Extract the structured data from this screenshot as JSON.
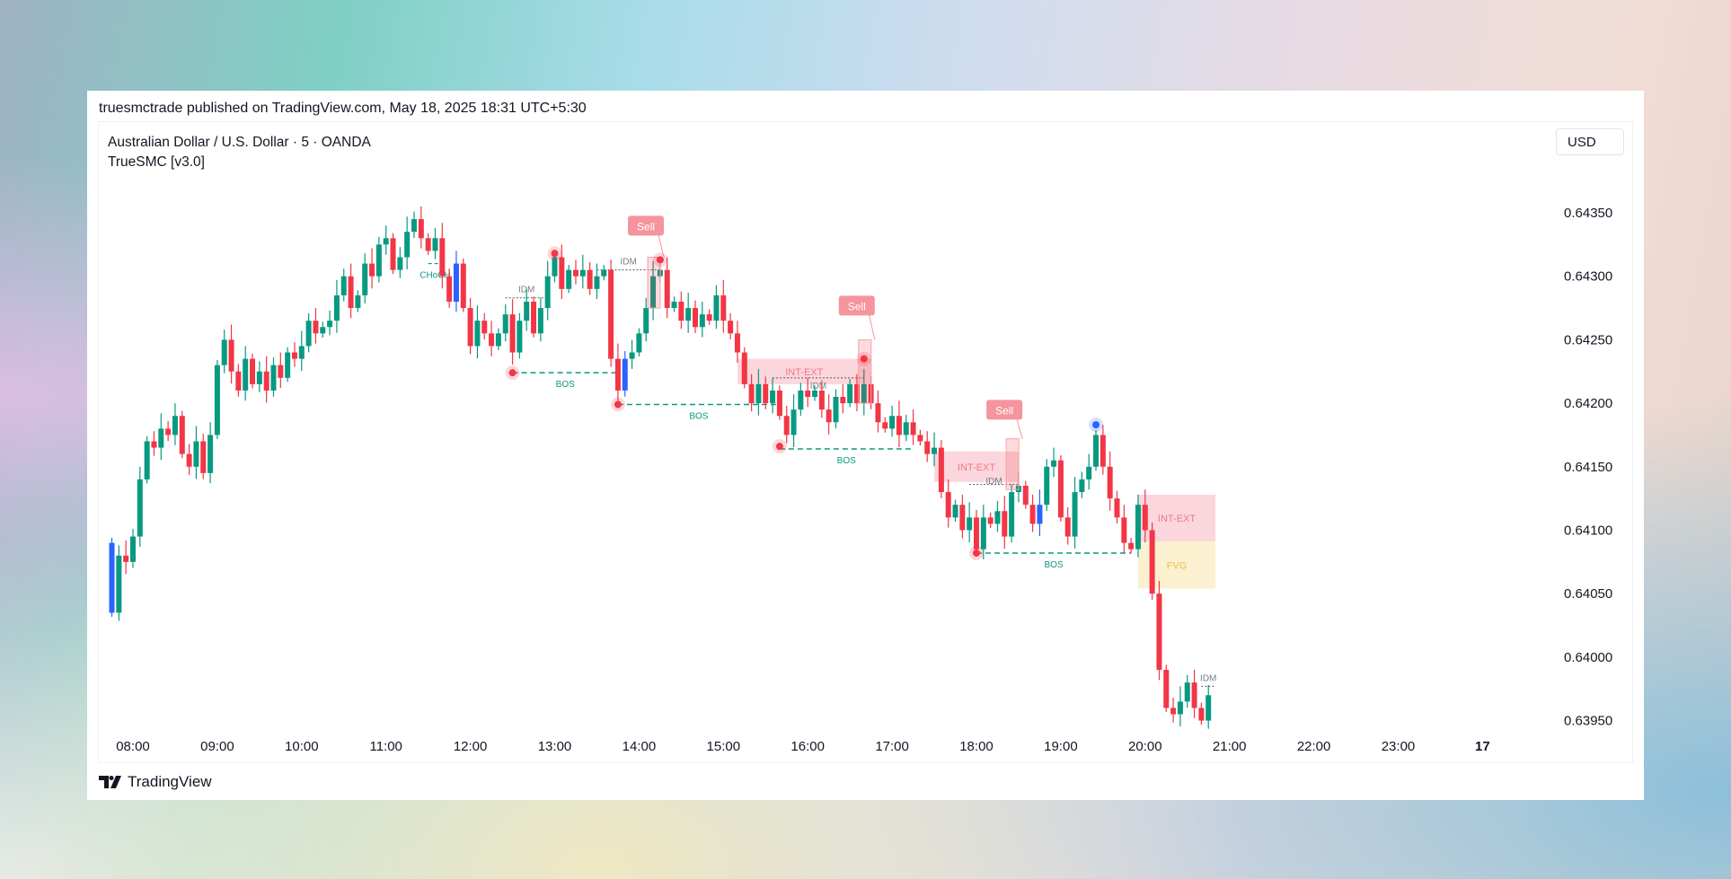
{
  "header": {
    "published": "truesmctrade published on TradingView.com, May 18, 2025 18:31 UTC+5:30"
  },
  "chart": {
    "symbol": "Australian Dollar / U.S. Dollar · 5 · OANDA",
    "indicator": "TrueSMC [v3.0]",
    "currency": "USD"
  },
  "footer": {
    "brand": "TradingView"
  },
  "colors": {
    "up": "#089981",
    "down": "#f23645",
    "highlight": "#2962ff",
    "zone": "#fbd6dc",
    "fvg": "#fbf0cf"
  },
  "chart_data": {
    "type": "candlestick",
    "interval_minutes": 5,
    "start_time": "07:45",
    "first_open": 0.6409,
    "close": [
      0.64035,
      0.6408,
      0.64075,
      0.64095,
      0.6414,
      0.6417,
      0.64165,
      0.6418,
      0.64175,
      0.6419,
      0.6416,
      0.6415,
      0.6417,
      0.64145,
      0.64175,
      0.6423,
      0.6425,
      0.64225,
      0.6421,
      0.64235,
      0.64215,
      0.64225,
      0.6421,
      0.6423,
      0.6422,
      0.6424,
      0.64235,
      0.64245,
      0.64265,
      0.64255,
      0.6426,
      0.64265,
      0.64285,
      0.643,
      0.64275,
      0.64285,
      0.6431,
      0.643,
      0.64325,
      0.6433,
      0.64305,
      0.64315,
      0.64335,
      0.64345,
      0.6433,
      0.6432,
      0.6433,
      0.643,
      0.6428,
      0.6431,
      0.64275,
      0.64245,
      0.64265,
      0.64255,
      0.64245,
      0.64255,
      0.6427,
      0.6424,
      0.64265,
      0.6428,
      0.64255,
      0.64275,
      0.643,
      0.64315,
      0.6429,
      0.64305,
      0.643,
      0.64305,
      0.6429,
      0.643,
      0.64305,
      0.64235,
      0.6421,
      0.64235,
      0.6424,
      0.64255,
      0.64275,
      0.643,
      0.64305,
      0.64275,
      0.6428,
      0.64265,
      0.64275,
      0.6426,
      0.6427,
      0.64265,
      0.64285,
      0.64265,
      0.64255,
      0.6424,
      0.64215,
      0.642,
      0.64215,
      0.642,
      0.6421,
      0.6419,
      0.64175,
      0.64195,
      0.6421,
      0.64205,
      0.6421,
      0.64195,
      0.64185,
      0.64205,
      0.642,
      0.64215,
      0.642,
      0.64215,
      0.642,
      0.64185,
      0.6418,
      0.6419,
      0.64175,
      0.64185,
      0.64175,
      0.6417,
      0.6416,
      0.64165,
      0.6413,
      0.6411,
      0.6412,
      0.641,
      0.6411,
      0.64085,
      0.6411,
      0.64105,
      0.64115,
      0.64095,
      0.6413,
      0.64135,
      0.6412,
      0.64105,
      0.6412,
      0.6415,
      0.64155,
      0.6411,
      0.64095,
      0.6413,
      0.6414,
      0.6415,
      0.64175,
      0.6415,
      0.64125,
      0.6411,
      0.6409,
      0.64085,
      0.6412,
      0.641,
      0.6405,
      0.6399,
      0.6396,
      0.63955,
      0.63965,
      0.6398,
      0.6396,
      0.6395,
      0.6397
    ],
    "y_ticks": [
      "0.64350",
      "0.64300",
      "0.64250",
      "0.64200",
      "0.64150",
      "0.64100",
      "0.64050",
      "0.64000",
      "0.63950"
    ],
    "x_ticks": [
      "08:00",
      "09:00",
      "10:00",
      "11:00",
      "12:00",
      "13:00",
      "14:00",
      "15:00",
      "16:00",
      "17:00",
      "18:00",
      "19:00",
      "20:00",
      "21:00",
      "22:00",
      "23:00",
      "17"
    ],
    "ylim": [
      0.63925,
      0.64385
    ],
    "annotations": {
      "zones": [
        {
          "label": "INT-EXT",
          "kind": "zone",
          "t0": "15:10",
          "t1": "16:45",
          "top": 0.64235,
          "bottom": 0.64215
        },
        {
          "label": "INT-EXT",
          "kind": "zone",
          "t0": "17:30",
          "t1": "18:30",
          "top": 0.64162,
          "bottom": 0.64138
        },
        {
          "label": "INT-EXT",
          "kind": "zone",
          "t0": "19:55",
          "t1": "20:50",
          "top": 0.64128,
          "bottom": 0.64091
        },
        {
          "label": "FVG",
          "kind": "fvg",
          "t0": "19:55",
          "t1": "20:50",
          "top": 0.64091,
          "bottom": 0.64054
        }
      ],
      "sells": [
        {
          "label": "Sell",
          "t": "14:10",
          "price": 0.64325,
          "box_top": 0.64315,
          "box_bottom": 0.64275
        },
        {
          "label": "Sell",
          "t": "16:40",
          "price": 0.64262,
          "box_top": 0.6425,
          "box_bottom": 0.642
        },
        {
          "label": "Sell",
          "t": "18:25",
          "price": 0.6418,
          "box_top": 0.64172,
          "box_bottom": 0.64132
        }
      ],
      "bos": [
        {
          "label": "BOS",
          "t0": "12:30",
          "t1": "13:45",
          "price": 0.64224
        },
        {
          "label": "BOS",
          "t0": "13:45",
          "t1": "15:40",
          "price": 0.64199
        },
        {
          "label": "BOS",
          "t0": "15:40",
          "t1": "17:15",
          "price": 0.64164
        },
        {
          "label": "BOS",
          "t0": "18:00",
          "t1": "19:50",
          "price": 0.64082
        }
      ],
      "choch": [
        {
          "label": "CHoCH",
          "t0": "11:30",
          "t1": "11:40",
          "price": 0.6431
        }
      ],
      "idm": [
        {
          "label": "IDM",
          "t0": "12:25",
          "t1": "12:55",
          "price": 0.64283
        },
        {
          "label": "IDM",
          "t0": "13:30",
          "t1": "14:15",
          "price": 0.64305
        },
        {
          "label": "IDM",
          "t0": "15:35",
          "t1": "16:40",
          "price": 0.6422
        },
        {
          "label": "IDM",
          "t0": "17:55",
          "t1": "18:30",
          "price": 0.64136
        },
        {
          "label": "IDM",
          "t0": "20:40",
          "t1": "20:50",
          "price": 0.63977
        }
      ],
      "swing_points": [
        {
          "t": "13:00",
          "price": 0.64318,
          "color": "red"
        },
        {
          "t": "12:30",
          "price": 0.64224,
          "color": "red"
        },
        {
          "t": "13:45",
          "price": 0.64199,
          "color": "red"
        },
        {
          "t": "15:40",
          "price": 0.64166,
          "color": "red"
        },
        {
          "t": "16:40",
          "price": 0.64235,
          "color": "red"
        },
        {
          "t": "14:15",
          "price": 0.64313,
          "color": "red"
        },
        {
          "t": "18:00",
          "price": 0.64082,
          "color": "red"
        },
        {
          "t": "19:25",
          "price": 0.64183,
          "color": "blue"
        }
      ]
    }
  }
}
